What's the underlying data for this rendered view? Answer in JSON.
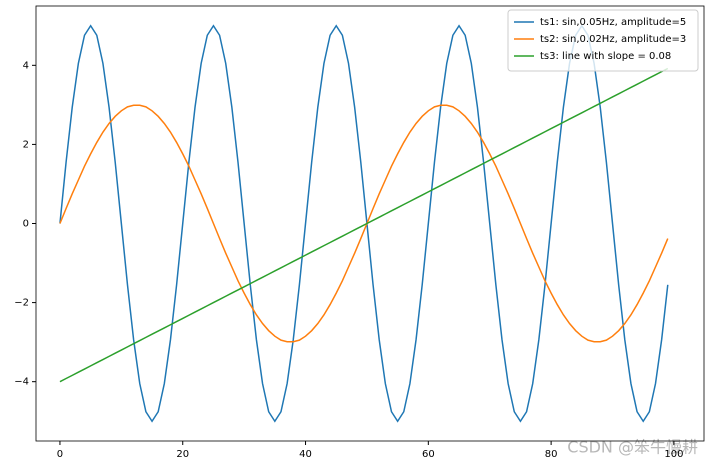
{
  "chart_data": {
    "type": "line",
    "x": [
      0,
      1,
      2,
      3,
      4,
      5,
      6,
      7,
      8,
      9,
      10,
      11,
      12,
      13,
      14,
      15,
      16,
      17,
      18,
      19,
      20,
      21,
      22,
      23,
      24,
      25,
      26,
      27,
      28,
      29,
      30,
      31,
      32,
      33,
      34,
      35,
      36,
      37,
      38,
      39,
      40,
      41,
      42,
      43,
      44,
      45,
      46,
      47,
      48,
      49,
      50,
      51,
      52,
      53,
      54,
      55,
      56,
      57,
      58,
      59,
      60,
      61,
      62,
      63,
      64,
      65,
      66,
      67,
      68,
      69,
      70,
      71,
      72,
      73,
      74,
      75,
      76,
      77,
      78,
      79,
      80,
      81,
      82,
      83,
      84,
      85,
      86,
      87,
      88,
      89,
      90,
      91,
      92,
      93,
      94,
      95,
      96,
      97,
      98,
      99
    ],
    "series": [
      {
        "name": "ts1: sin,0.05Hz, amplitude=5",
        "color": "#1f77b4",
        "values": [
          0,
          1.55,
          2.94,
          4.05,
          4.76,
          5,
          4.76,
          4.05,
          2.94,
          1.55,
          0,
          -1.55,
          -2.94,
          -4.05,
          -4.76,
          -5,
          -4.76,
          -4.05,
          -2.94,
          -1.55,
          0,
          1.55,
          2.94,
          4.05,
          4.76,
          5,
          4.76,
          4.05,
          2.94,
          1.55,
          0,
          -1.55,
          -2.94,
          -4.05,
          -4.76,
          -5,
          -4.76,
          -4.05,
          -2.94,
          -1.55,
          0,
          1.55,
          2.94,
          4.05,
          4.76,
          5,
          4.76,
          4.05,
          2.94,
          1.55,
          0,
          -1.55,
          -2.94,
          -4.05,
          -4.76,
          -5,
          -4.76,
          -4.05,
          -2.94,
          -1.55,
          0,
          1.55,
          2.94,
          4.05,
          4.76,
          5,
          4.76,
          4.05,
          2.94,
          1.55,
          0,
          -1.55,
          -2.94,
          -4.05,
          -4.76,
          -5,
          -4.76,
          -4.05,
          -2.94,
          -1.55,
          0,
          1.55,
          2.94,
          4.05,
          4.76,
          5,
          4.76,
          4.05,
          2.94,
          1.55,
          0,
          -1.55,
          -2.94,
          -4.05,
          -4.76,
          -5,
          -4.76,
          -4.05,
          -2.94,
          -1.55
        ]
      },
      {
        "name": "ts2: sin,0.02Hz, amplitude=3",
        "color": "#ff7f0e",
        "values": [
          0,
          0.38,
          0.75,
          1.1,
          1.45,
          1.76,
          2.05,
          2.31,
          2.53,
          2.71,
          2.85,
          2.95,
          2.99,
          2.99,
          2.95,
          2.85,
          2.71,
          2.53,
          2.31,
          2.05,
          1.76,
          1.45,
          1.1,
          0.75,
          0.38,
          0,
          -0.38,
          -0.75,
          -1.1,
          -1.45,
          -1.76,
          -2.05,
          -2.31,
          -2.53,
          -2.71,
          -2.85,
          -2.95,
          -2.99,
          -2.99,
          -2.95,
          -2.85,
          -2.71,
          -2.53,
          -2.31,
          -2.05,
          -1.76,
          -1.45,
          -1.1,
          -0.75,
          -0.38,
          0,
          0.38,
          0.75,
          1.1,
          1.45,
          1.76,
          2.05,
          2.31,
          2.53,
          2.71,
          2.85,
          2.95,
          2.99,
          2.99,
          2.95,
          2.85,
          2.71,
          2.53,
          2.31,
          2.05,
          1.76,
          1.45,
          1.1,
          0.75,
          0.38,
          0,
          -0.38,
          -0.75,
          -1.1,
          -1.45,
          -1.76,
          -2.05,
          -2.31,
          -2.53,
          -2.71,
          -2.85,
          -2.95,
          -2.99,
          -2.99,
          -2.95,
          -2.85,
          -2.71,
          -2.53,
          -2.31,
          -2.05,
          -1.76,
          -1.45,
          -1.1,
          -0.75,
          -0.38
        ]
      },
      {
        "name": "ts3: line with slope = 0.08",
        "color": "#2ca02c",
        "values": [
          -4,
          -3.92,
          -3.84,
          -3.76,
          -3.68,
          -3.6,
          -3.52,
          -3.44,
          -3.36,
          -3.28,
          -3.2,
          -3.12,
          -3.04,
          -2.96,
          -2.88,
          -2.8,
          -2.72,
          -2.64,
          -2.56,
          -2.48,
          -2.4,
          -2.32,
          -2.24,
          -2.16,
          -2.08,
          -2,
          -1.92,
          -1.84,
          -1.76,
          -1.68,
          -1.6,
          -1.52,
          -1.44,
          -1.36,
          -1.28,
          -1.2,
          -1.12,
          -1.04,
          -0.96,
          -0.88,
          -0.8,
          -0.72,
          -0.64,
          -0.56,
          -0.48,
          -0.4,
          -0.32,
          -0.24,
          -0.16,
          -0.08,
          0,
          0.08,
          0.16,
          0.24,
          0.32,
          0.4,
          0.48,
          0.56,
          0.64,
          0.72,
          0.8,
          0.88,
          0.96,
          1.04,
          1.12,
          1.2,
          1.28,
          1.36,
          1.44,
          1.52,
          1.6,
          1.68,
          1.76,
          1.84,
          1.92,
          2,
          2.08,
          2.16,
          2.24,
          2.32,
          2.4,
          2.48,
          2.56,
          2.64,
          2.72,
          2.8,
          2.88,
          2.96,
          3.04,
          3.12,
          3.2,
          3.28,
          3.36,
          3.44,
          3.52,
          3.6,
          3.68,
          3.76,
          3.84,
          3.92
        ]
      }
    ],
    "xlim": [
      -3.9,
      104.9
    ],
    "xticks": [
      0,
      20,
      40,
      60,
      80,
      100
    ],
    "ylim": [
      -5.5,
      5.5
    ],
    "yticks": [
      {
        "value": -4,
        "label": "−4"
      },
      {
        "value": -2,
        "label": "−2"
      },
      0,
      2,
      4
    ],
    "grid": false,
    "legend": "upper right",
    "watermark": "CSDN @笨牛慢耕"
  }
}
